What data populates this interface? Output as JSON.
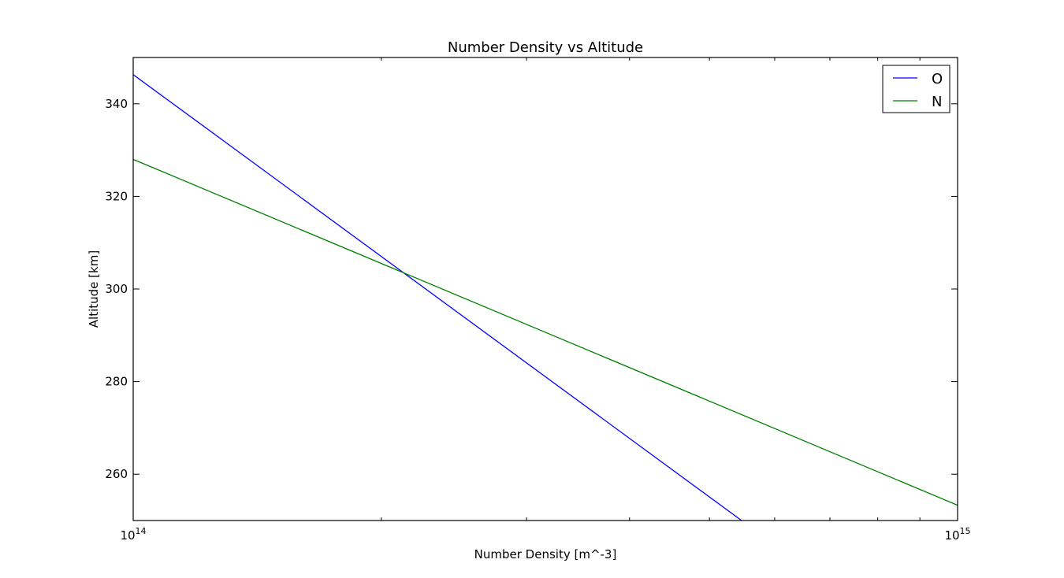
{
  "chart_data": {
    "type": "line",
    "title": "Number Density vs Altitude",
    "xlabel": "Number Density [m^-3]",
    "ylabel": "Altitude [km]",
    "xscale": "log",
    "xlim": [
      100000000000000.0,
      1000000000000000.0
    ],
    "ylim": [
      250,
      350
    ],
    "x_ticks": [
      {
        "value": 100000000000000.0,
        "base": "10",
        "exp": "14"
      },
      {
        "value": 1000000000000000.0,
        "base": "10",
        "exp": "15"
      }
    ],
    "y_ticks": [
      260,
      280,
      300,
      320,
      340
    ],
    "grid": false,
    "legend": "top-right",
    "series": [
      {
        "name": "O",
        "color": "#0000ff",
        "x": [
          100000000000000.0,
          547000000000000.0
        ],
        "y": [
          346.3,
          250
        ]
      },
      {
        "name": "N",
        "color": "#008000",
        "x": [
          100000000000000.0,
          1000000000000000.0
        ],
        "y": [
          328.0,
          253.3
        ]
      }
    ]
  }
}
